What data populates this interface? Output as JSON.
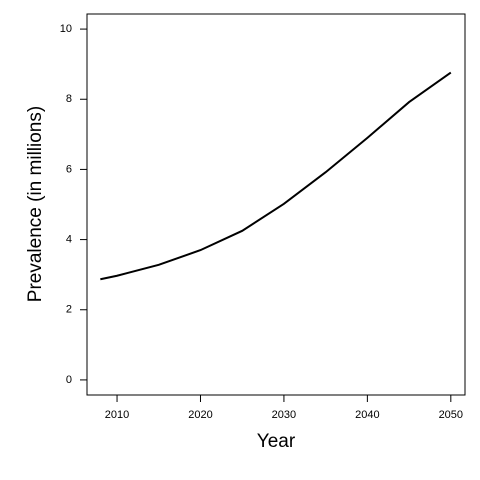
{
  "chart_data": {
    "type": "line",
    "x_label": "Year",
    "y_label": "Prevalence (in millions)",
    "x": [
      2008,
      2010,
      2015,
      2020,
      2025,
      2030,
      2035,
      2040,
      2045,
      2050
    ],
    "series": [
      {
        "color": "#000000",
        "values": [
          2.87,
          2.97,
          3.28,
          3.7,
          4.25,
          5.02,
          5.92,
          6.9,
          7.92,
          8.76
        ]
      }
    ],
    "xlim": [
      2006.4,
      2051.7
    ],
    "xticks": [
      2010,
      2020,
      2030,
      2040,
      2050
    ],
    "ylim": [
      -0.43,
      10.43
    ],
    "yticks": [
      0,
      2,
      4,
      6,
      8,
      10
    ]
  }
}
